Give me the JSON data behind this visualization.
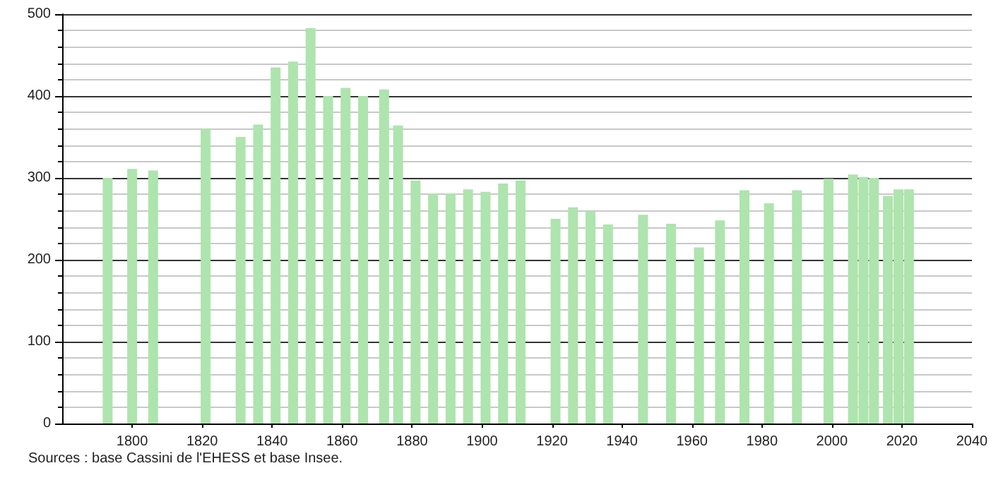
{
  "chart_data": {
    "type": "bar",
    "x": [
      1793,
      1800,
      1806,
      1821,
      1831,
      1836,
      1841,
      1846,
      1851,
      1856,
      1861,
      1866,
      1872,
      1876,
      1881,
      1886,
      1891,
      1896,
      1901,
      1906,
      1911,
      1921,
      1926,
      1931,
      1936,
      1946,
      1954,
      1962,
      1968,
      1975,
      1982,
      1990,
      1999,
      2006,
      2009,
      2012,
      2016,
      2019,
      2022
    ],
    "values": [
      300,
      311,
      309,
      360,
      350,
      365,
      435,
      442,
      483,
      400,
      410,
      400,
      408,
      364,
      297,
      281,
      281,
      286,
      283,
      293,
      297,
      250,
      264,
      259,
      243,
      255,
      244,
      215,
      248,
      285,
      269,
      285,
      299,
      304,
      301,
      300,
      278,
      286,
      286
    ],
    "color": "#aee4ae",
    "xlim": [
      1780,
      2040
    ],
    "xticks": [
      1800,
      1820,
      1840,
      1860,
      1880,
      1900,
      1920,
      1940,
      1960,
      1980,
      2000,
      2020,
      2040
    ],
    "ylim": [
      0,
      500
    ],
    "yticks": [
      0,
      100,
      200,
      300,
      400,
      500
    ],
    "grid": "y",
    "annotations": [
      "Sources : base Cassini de l'EHESS et base Insee."
    ]
  }
}
